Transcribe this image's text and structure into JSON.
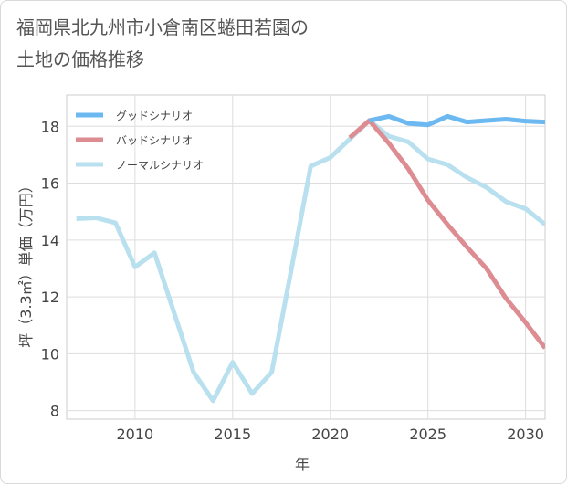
{
  "chart_data": {
    "type": "line",
    "title": "福岡県北九州市小倉南区蜷田若園の\n土地の価格推移",
    "xlabel": "年",
    "ylabel": "坪（3.3㎡）単価（万円）",
    "xlim": [
      2006.5,
      2031
    ],
    "ylim": [
      7.7,
      19.1
    ],
    "x_ticks": [
      2010,
      2015,
      2020,
      2025,
      2030
    ],
    "y_ticks": [
      8,
      10,
      12,
      14,
      16,
      18
    ],
    "grid": true,
    "legend_position": "top-left",
    "series": [
      {
        "name": "グッドシナリオ",
        "color": "#6cb8f0",
        "x": [
          2022,
          2023,
          2024,
          2025,
          2026,
          2027,
          2028,
          2029,
          2030,
          2031
        ],
        "values": [
          18.2,
          18.35,
          18.1,
          18.05,
          18.35,
          18.15,
          18.2,
          18.25,
          18.18,
          18.15
        ]
      },
      {
        "name": "バッドシナリオ",
        "color": "#dd8c92",
        "x": [
          2021,
          2022,
          2023,
          2024,
          2025,
          2026,
          2027,
          2028,
          2029,
          2030,
          2031
        ],
        "values": [
          17.6,
          18.2,
          17.4,
          16.5,
          15.4,
          14.55,
          13.75,
          13.0,
          11.95,
          11.1,
          10.2
        ]
      },
      {
        "name": "ノーマルシナリオ",
        "color": "#b9e0ee",
        "x": [
          2007,
          2008,
          2009,
          2010,
          2011,
          2012,
          2013,
          2014,
          2015,
          2016,
          2017,
          2018,
          2019,
          2020,
          2021,
          2022,
          2023,
          2024,
          2025,
          2026,
          2027,
          2028,
          2029,
          2030,
          2031
        ],
        "values": [
          14.75,
          14.78,
          14.6,
          13.05,
          13.55,
          11.45,
          9.35,
          8.35,
          9.7,
          8.6,
          9.35,
          12.95,
          16.6,
          16.9,
          17.55,
          18.2,
          17.65,
          17.45,
          16.85,
          16.65,
          16.2,
          15.85,
          15.35,
          15.1,
          14.55
        ]
      }
    ]
  }
}
